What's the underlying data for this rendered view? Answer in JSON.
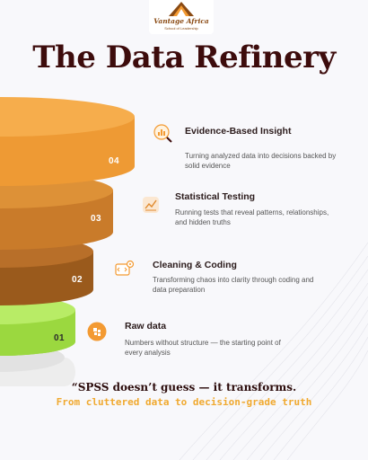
{
  "colors": {
    "accent_orange": "#f39a32",
    "dark_brown": "#3d0c0c",
    "layer_04": "#f3a03a",
    "layer_03": "#c97b2a",
    "layer_02": "#9a5a1c",
    "layer_01": "#a3e04a"
  },
  "logo": {
    "name": "Vantage Africa",
    "subtitle": "School of Leadership"
  },
  "page": {
    "title": "The Data Refinery"
  },
  "steps": [
    {
      "number": "04",
      "title": "Evidence-Based Insight",
      "description": "Turning analyzed data into decisions backed by solid evidence",
      "icon": "insight-search-icon"
    },
    {
      "number": "03",
      "title": "Statistical Testing",
      "description": "Running tests that reveal patterns, relationships, and hidden truths",
      "icon": "chart-icon"
    },
    {
      "number": "02",
      "title": "Cleaning & Coding",
      "description": "Transforming chaos into clarity through coding and data preparation",
      "icon": "code-gear-icon"
    },
    {
      "number": "01",
      "title": "Raw data",
      "description": "Numbers without structure — the starting point of every analysis",
      "icon": "raw-data-icon"
    }
  ],
  "footer": {
    "quote": "“SPSS doesn’t guess — it transforms.",
    "tagline": "From cluttered data to decision-grade truth"
  }
}
